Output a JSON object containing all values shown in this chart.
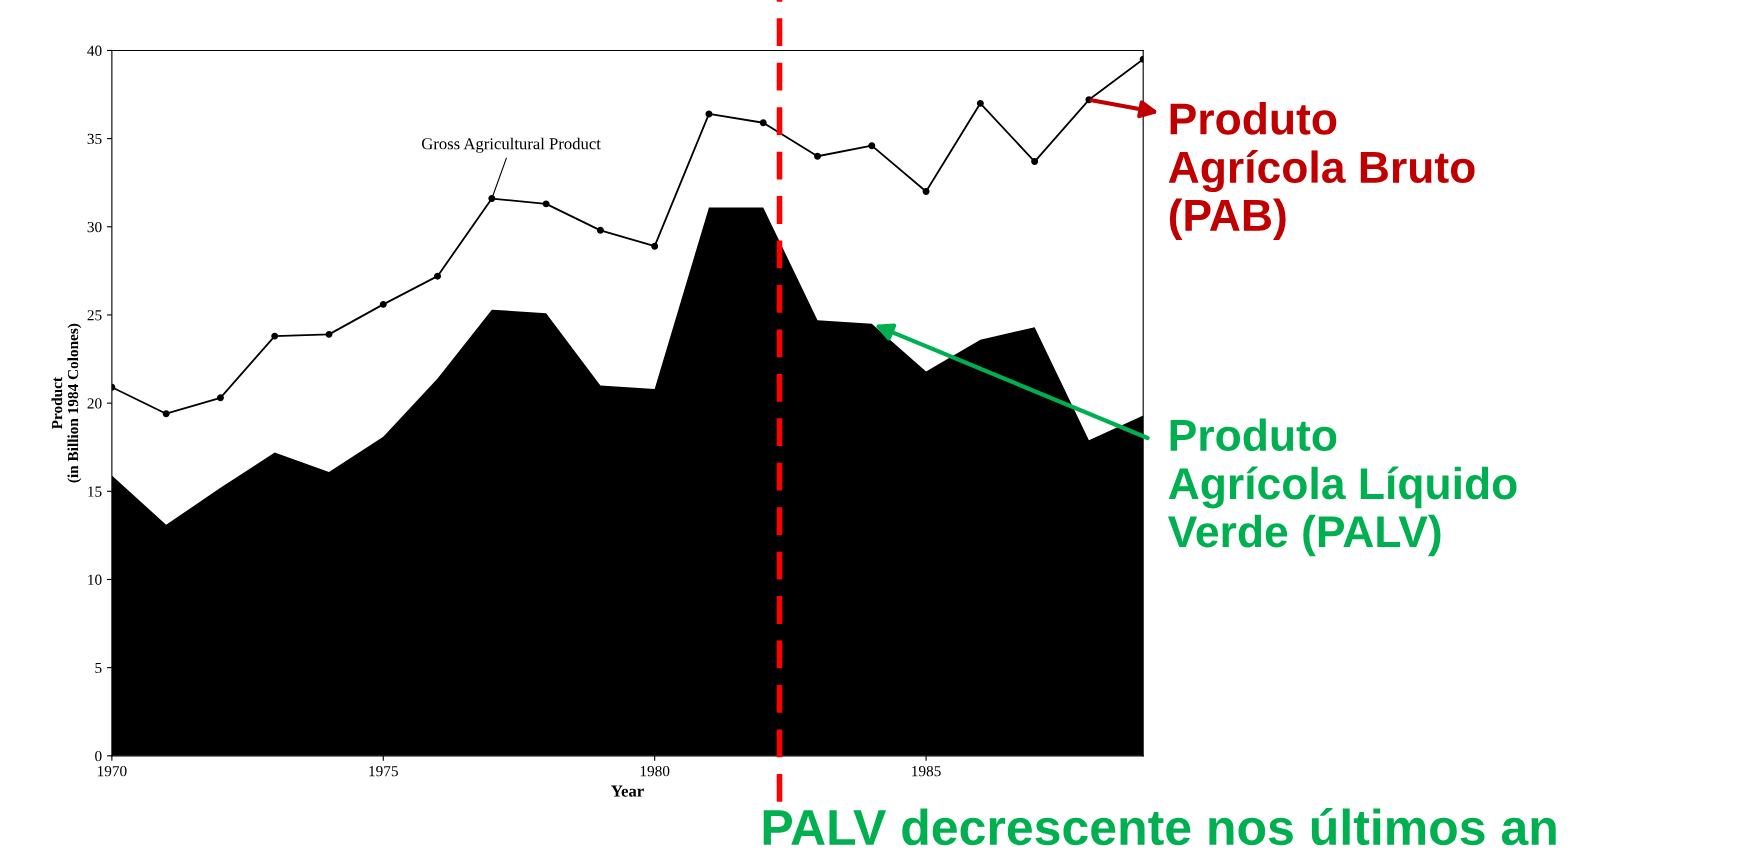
{
  "chart_data": {
    "type": "line",
    "xlabel": "Year",
    "ylabel": "Product\n(in Billion 1984 Colones)",
    "x": [
      1970,
      1971,
      1972,
      1973,
      1974,
      1975,
      1976,
      1977,
      1978,
      1979,
      1980,
      1981,
      1982,
      1983,
      1984,
      1985,
      1986,
      1987,
      1988,
      1989
    ],
    "series": [
      {
        "type": "area",
        "color": "#000000",
        "values": [
          15.9,
          13.1,
          15.2,
          17.2,
          16.1,
          18.1,
          21.4,
          25.3,
          25.1,
          21.0,
          20.8,
          31.1,
          31.1,
          24.7,
          24.5,
          21.8,
          23.6,
          24.3,
          17.9,
          19.3
        ]
      },
      {
        "marker": "circle",
        "color": "#000000",
        "values": [
          20.9,
          19.4,
          20.3,
          23.8,
          23.9,
          25.6,
          27.2,
          31.6,
          31.3,
          29.8,
          28.9,
          36.4,
          35.9,
          34.0,
          34.6,
          32.0,
          37.0,
          33.7,
          37.2,
          39.5
        ]
      }
    ],
    "grid": false,
    "legend": false,
    "xlim": [
      1970,
      1989
    ],
    "xticks": [
      1970,
      1975,
      1980,
      1985
    ],
    "ylim": [
      0,
      40
    ],
    "yticks": [
      0,
      5,
      10,
      15,
      20,
      25,
      30,
      35,
      40
    ],
    "ref_lines": [
      {
        "axis": "x",
        "value": 1982.3,
        "color": "#ff0000",
        "line_style": "dashed"
      }
    ],
    "annotations": [
      {
        "text": "Gross Agricultural Product",
        "x": 1977,
        "y": 31.6
      },
      {
        "text": "Produto\nAgrícola Bruto\n(PAB)",
        "x": 1988,
        "y": 37.2
      },
      {
        "text": "Produto\nAgrícola Líquido\nVerde (PALV)",
        "x": 1984,
        "y": 24.5
      },
      "PALV decrescente nos últimos an"
    ]
  }
}
